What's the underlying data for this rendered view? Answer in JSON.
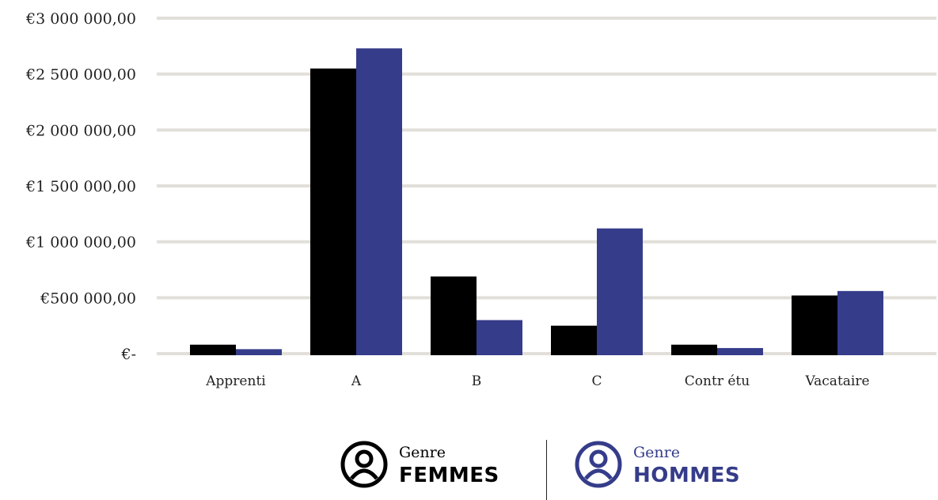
{
  "chart_data": {
    "type": "bar",
    "categories": [
      "Apprenti",
      "A",
      "B",
      "C",
      "Contr étu",
      "Vacataire"
    ],
    "series": [
      {
        "name": "FEMMES",
        "color": "#000000",
        "values": [
          80000,
          2550000,
          690000,
          250000,
          80000,
          520000
        ]
      },
      {
        "name": "HOMMES",
        "color": "#353c8a",
        "values": [
          40000,
          2730000,
          300000,
          1120000,
          50000,
          560000
        ]
      }
    ],
    "ylim": [
      0,
      3000000
    ],
    "yticks": [
      {
        "value": 0,
        "label": "€-"
      },
      {
        "value": 500000,
        "label": "€500 000,00"
      },
      {
        "value": 1000000,
        "label": "€1 000 000,00"
      },
      {
        "value": 1500000,
        "label": "€1 500 000,00"
      },
      {
        "value": 2000000,
        "label": "€2 000 000,00"
      },
      {
        "value": 2500000,
        "label": "€2 500 000,00"
      },
      {
        "value": 3000000,
        "label": "€3 000 000,00"
      }
    ],
    "grid": true,
    "gridColor": "#e2dfd9",
    "title": "",
    "xlabel": "",
    "ylabel": ""
  },
  "legend": {
    "femmes": {
      "prefix": "Genre",
      "label": "FEMMES",
      "color": "#000000",
      "icon": "user-icon"
    },
    "hommes": {
      "prefix": "Genre",
      "label": "HOMMES",
      "color": "#353c8a",
      "icon": "user-icon"
    }
  }
}
